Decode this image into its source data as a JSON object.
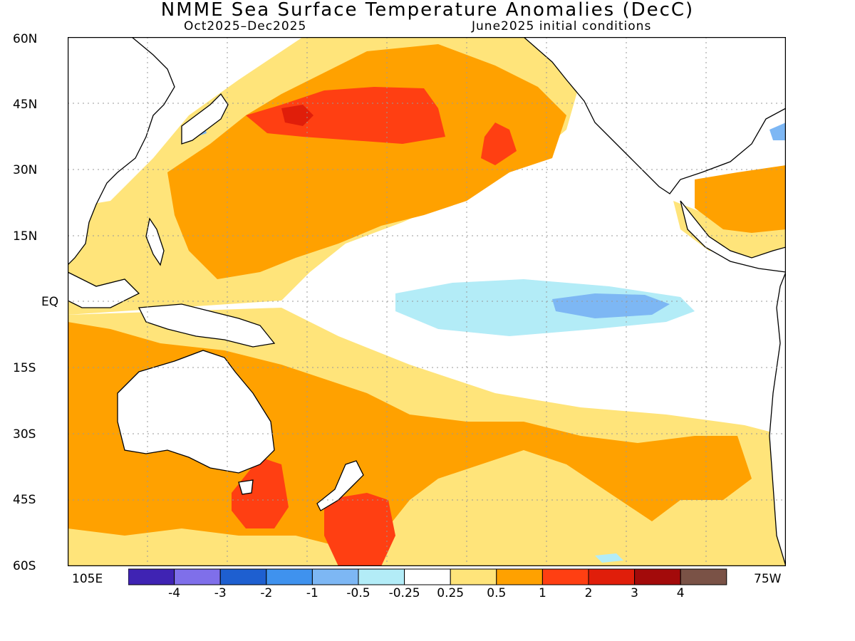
{
  "title": "NMME Sea Surface Temperature Anomalies (DecC)",
  "subtitle_left": "Oct2025–Dec2025",
  "subtitle_right": "June2025 initial conditions",
  "lat_labels": [
    "60N",
    "45N",
    "30N",
    "15N",
    "EQ",
    "15S",
    "30S",
    "45S",
    "60S"
  ],
  "lon_labels": {
    "west_edge": "105E",
    "east_edge": "75W"
  },
  "colorbar": {
    "colors": [
      "#3f23b3",
      "#7f6fea",
      "#1e5fd0",
      "#3f92ee",
      "#7db7f4",
      "#b3ecf7",
      "#ffffff",
      "#ffe47a",
      "#ffa100",
      "#ff3f12",
      "#e01e0a",
      "#a30a0a",
      "#7a5246"
    ],
    "labels": [
      "-4",
      "-3",
      "-2",
      "-1",
      "-0.5",
      "-0.25",
      "0.25",
      "0.5",
      "1",
      "2",
      "3",
      "4"
    ]
  },
  "map_colors": {
    "ocean_neutral": "#ffffff",
    "weak_warm": "#ffe47a",
    "moderate_warm": "#ffa100",
    "strong_warm": "#ff3f12",
    "very_strong_warm": "#e01e0a",
    "weak_cool": "#b3ecf7",
    "moderate_cool": "#7db7f4",
    "coast": "#000000",
    "grid": "#999999"
  }
}
